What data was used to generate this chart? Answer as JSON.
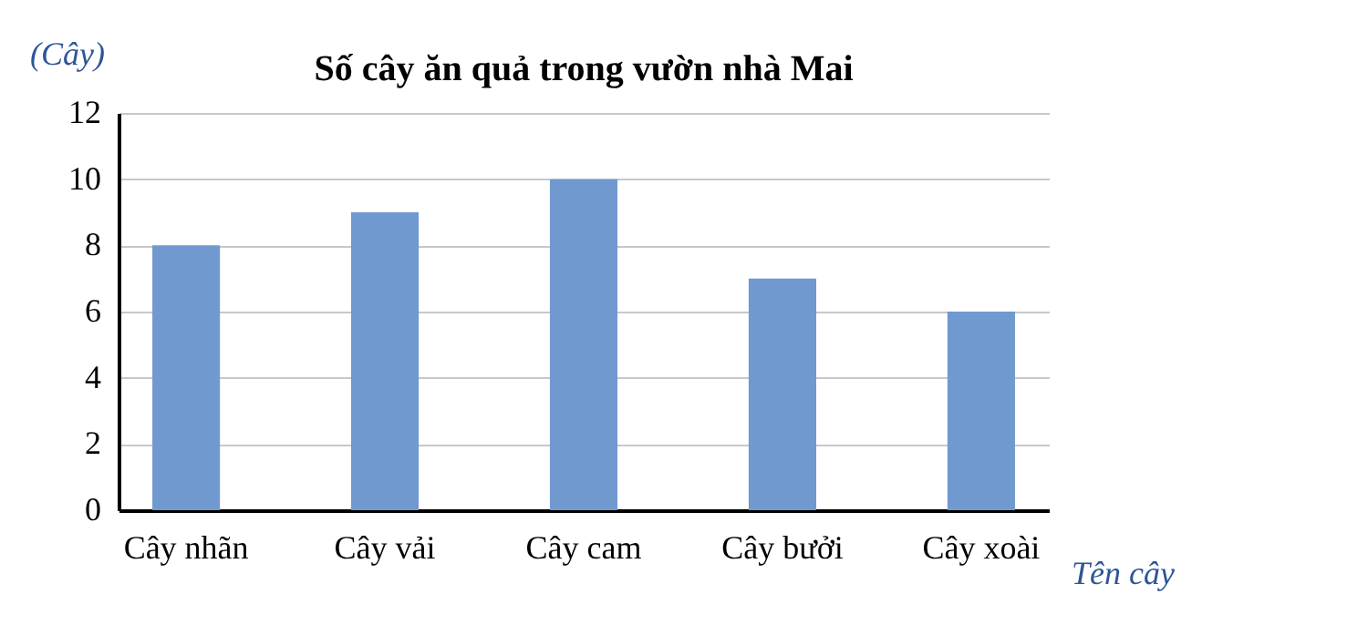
{
  "chart_data": {
    "type": "bar",
    "title": "Số cây ăn quả trong vườn nhà Mai",
    "xlabel": "Tên cây",
    "ylabel": "(Cây)",
    "categories": [
      "Cây nhãn",
      "Cây vải",
      "Cây cam",
      "Cây bưởi",
      "Cây  xoài"
    ],
    "values": [
      8,
      9,
      10,
      7,
      6
    ],
    "color": "#7099d0",
    "ylim": [
      0,
      12
    ],
    "yticks": [
      0,
      2,
      4,
      6,
      8,
      10,
      12
    ],
    "grid": "y"
  }
}
